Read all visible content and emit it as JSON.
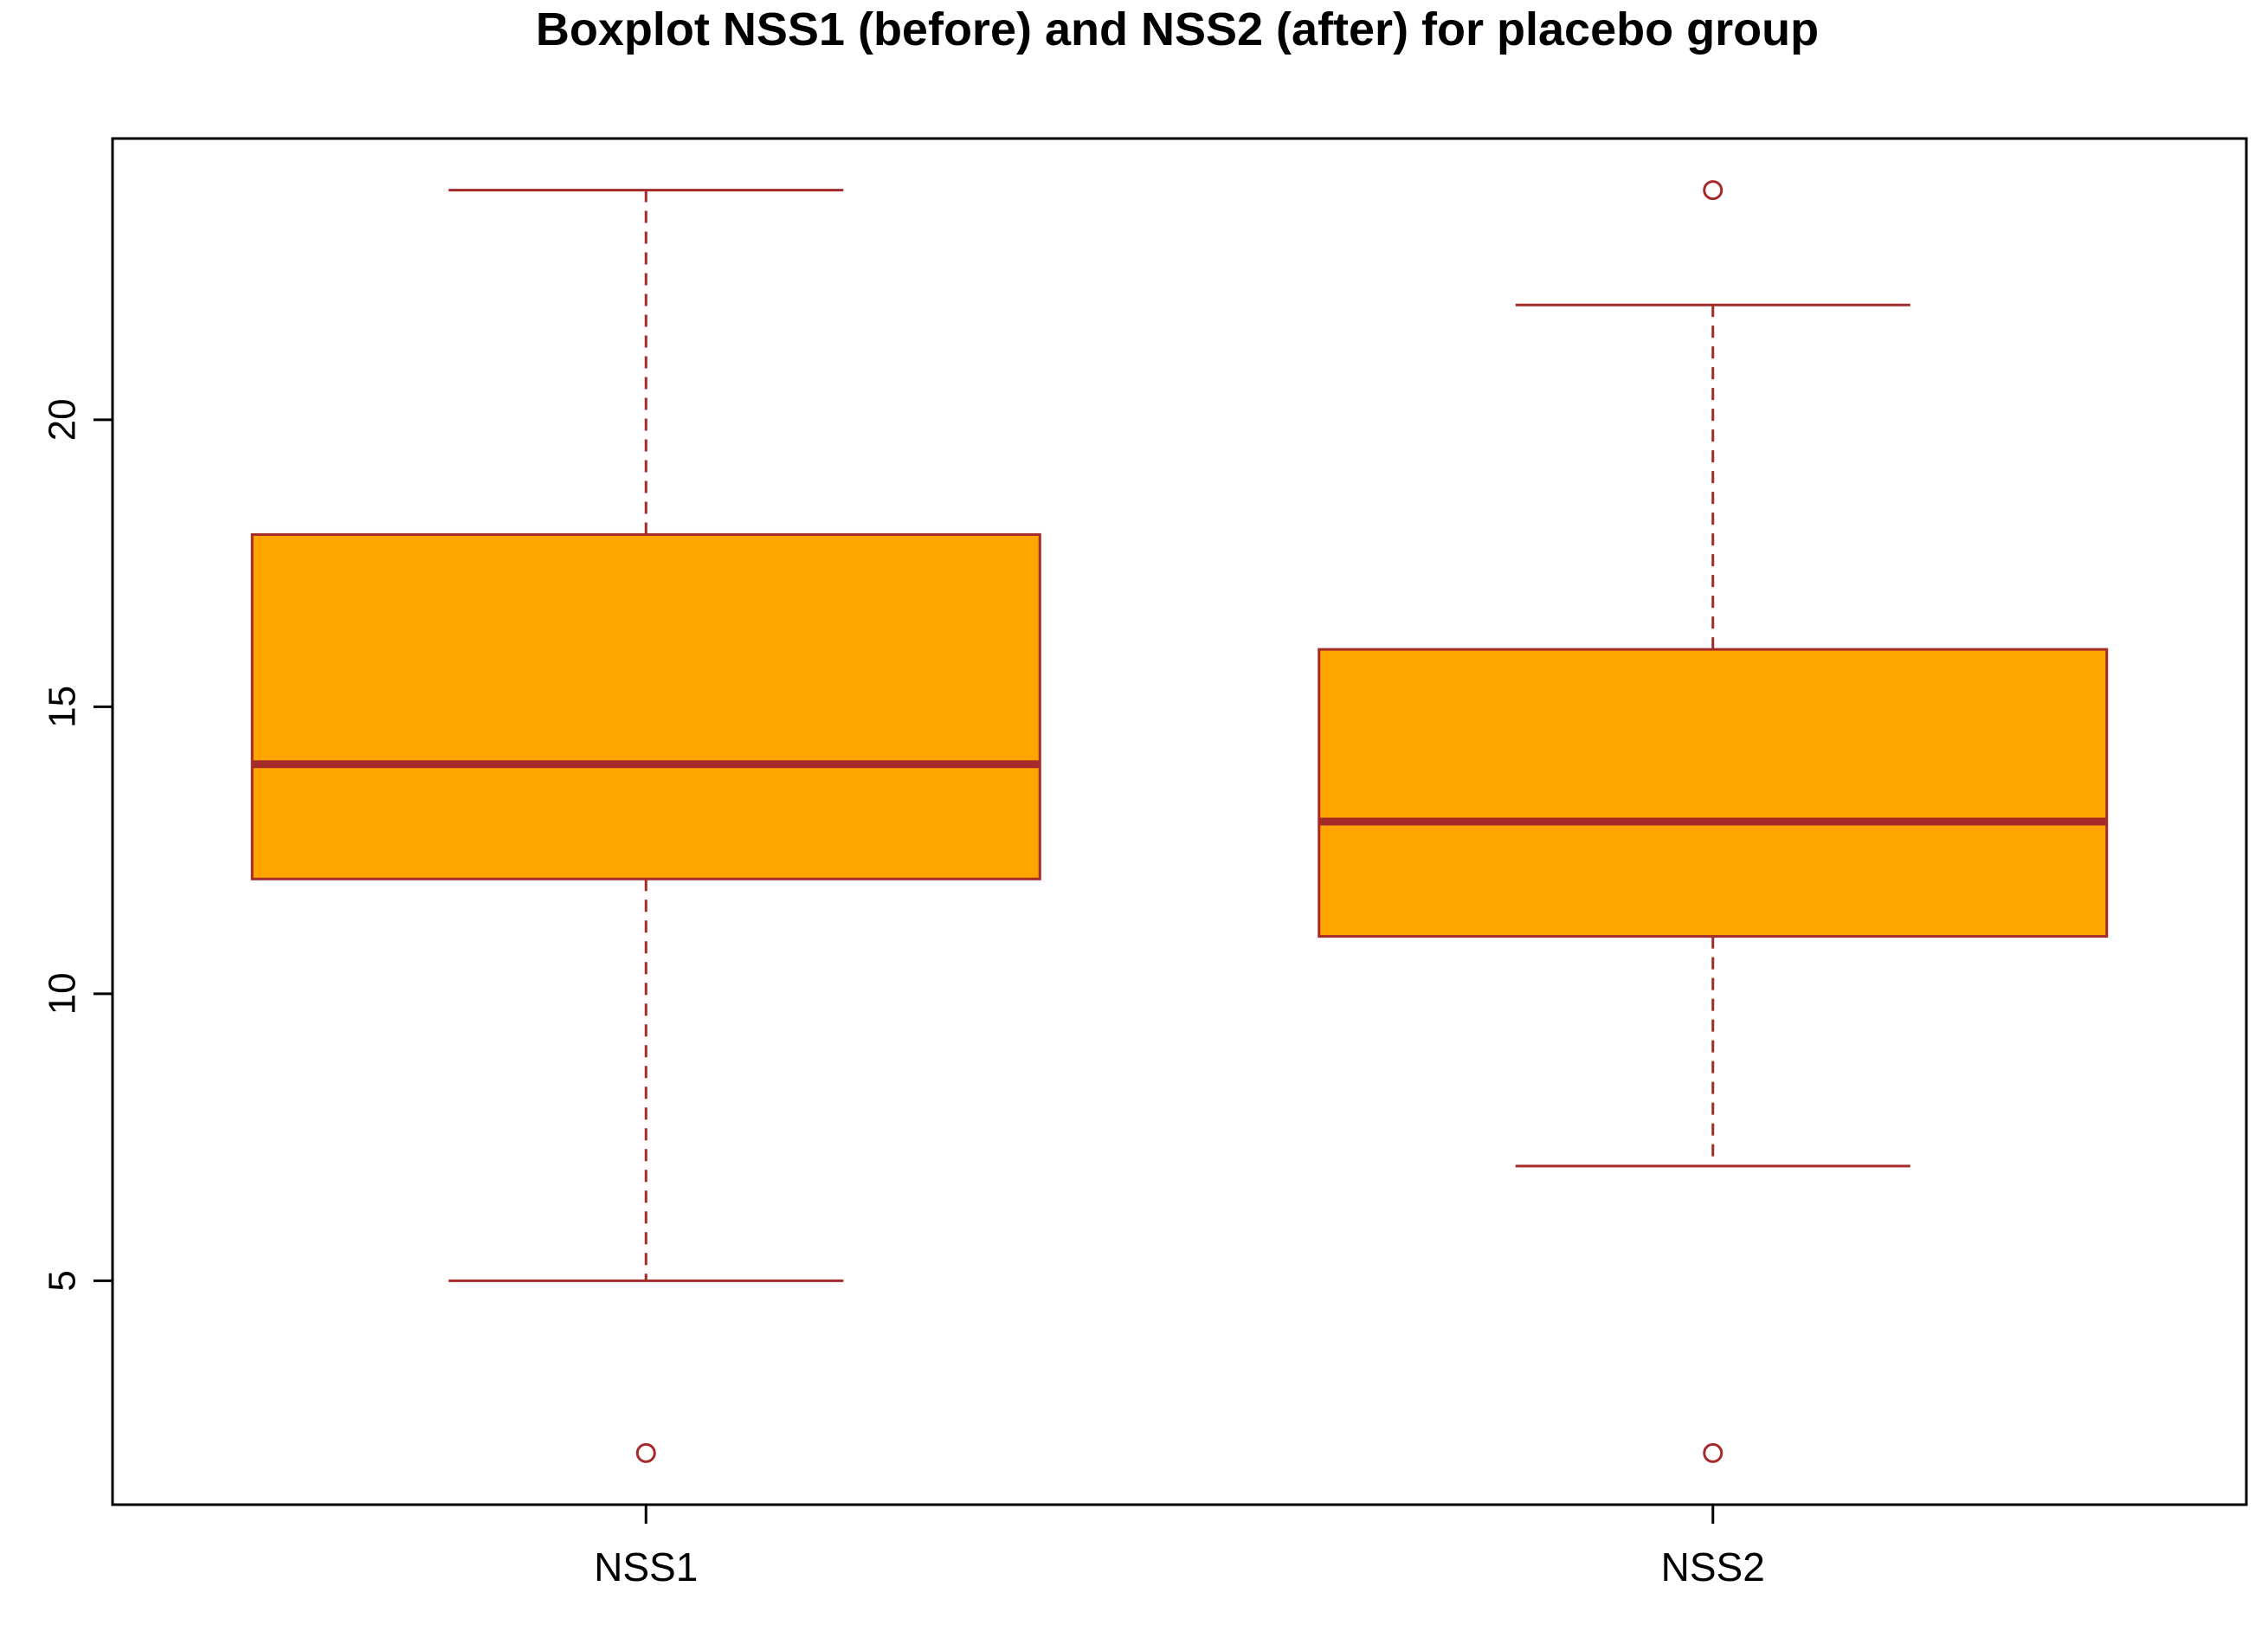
{
  "chart_data": {
    "type": "boxplot",
    "title": "Boxplot NSS1 (before) and NSS2 (after) for placebo group",
    "xlabel": "",
    "ylabel": "",
    "categories": [
      "NSS1",
      "NSS2"
    ],
    "ylim": [
      1.1,
      24.9
    ],
    "yticks": [
      5,
      10,
      15,
      20
    ],
    "grid": false,
    "legend": "none",
    "boxes": [
      {
        "name": "NSS1",
        "whisker_low": 5,
        "q1": 12,
        "median": 14,
        "q3": 18,
        "whisker_high": 24,
        "outliers": [
          2
        ]
      },
      {
        "name": "NSS2",
        "whisker_low": 7,
        "q1": 11,
        "median": 13,
        "q3": 16,
        "whisker_high": 22,
        "outliers": [
          2,
          24
        ]
      }
    ],
    "colors": {
      "box_fill": "#FFA500",
      "border": "#A52A2A"
    }
  }
}
